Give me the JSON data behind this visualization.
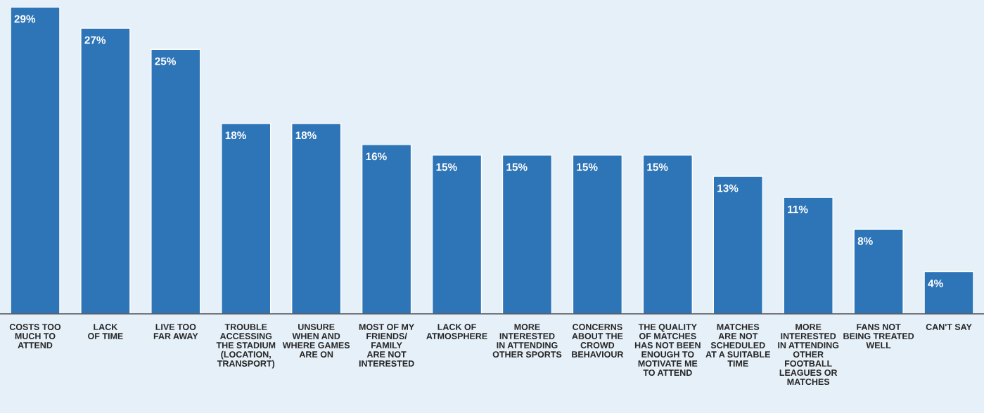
{
  "chart_data": {
    "type": "bar",
    "categories": [
      "COSTS TOO\nMUCH TO\nATTEND",
      "LACK\nOF TIME",
      "LIVE TOO\nFAR AWAY",
      "TROUBLE\nACCESSING\nTHE STADIUM\n(LOCATION,\nTRANSPORT)",
      "UNSURE\nWHEN AND\nWHERE GAMES\nARE ON",
      "MOST OF MY\nFRIENDS/\nFAMILY\nARE NOT\nINTERESTED",
      "LACK OF\nATMOSPHERE",
      "MORE\nINTERESTED\nIN ATTENDING\nOTHER SPORTS",
      "CONCERNS\nABOUT THE\nCROWD\nBEHAVIOUR",
      "THE QUALITY\nOF MATCHES\nHAS NOT BEEN\nENOUGH TO\nMOTIVATE ME\nTO ATTEND",
      "MATCHES\nARE NOT\nSCHEDULED\nAT A SUITABLE\nTIME",
      "MORE\nINTERESTED\nIN ATTENDING\nOTHER\nFOOTBALL\nLEAGUES OR\nMATCHES",
      "FANS NOT\nBEING TREATED\nWELL",
      "CAN'T SAY"
    ],
    "values": [
      29,
      27,
      25,
      18,
      18,
      16,
      15,
      15,
      15,
      15,
      13,
      11,
      8,
      4
    ],
    "value_labels": [
      "29%",
      "27%",
      "25%",
      "18%",
      "18%",
      "16%",
      "15%",
      "15%",
      "15%",
      "15%",
      "13%",
      "11%",
      "8%",
      "4%"
    ],
    "color": "#2e75b8"
  }
}
